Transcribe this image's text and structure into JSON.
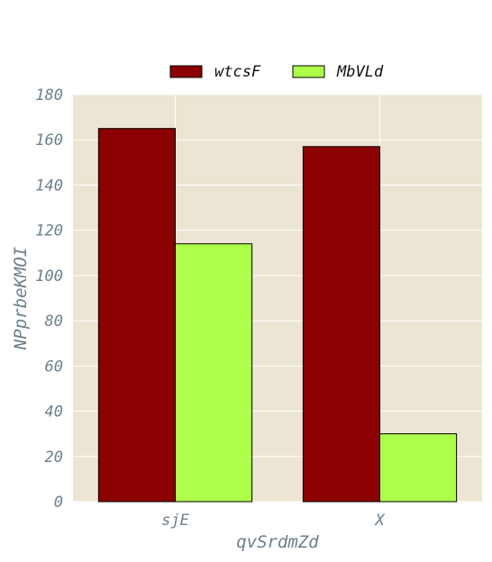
{
  "chart_data": {
    "type": "bar",
    "categories": [
      "sjE",
      "X"
    ],
    "series": [
      {
        "name": "wtcsF",
        "values": [
          165,
          157
        ],
        "color": "#8b0000"
      },
      {
        "name": "MbVLd",
        "values": [
          114,
          30
        ],
        "color": "#adff4a"
      }
    ],
    "title": "",
    "xlabel": "qvSrdmZd",
    "ylabel": "NPprbeKMOI",
    "ylim": [
      0,
      180
    ],
    "yticks": [
      0,
      20,
      40,
      60,
      80,
      100,
      120,
      140,
      160,
      180
    ],
    "grid": true,
    "legend_position": "top-center",
    "background_color": "#ede5d3",
    "grid_color": "#ffffff"
  }
}
